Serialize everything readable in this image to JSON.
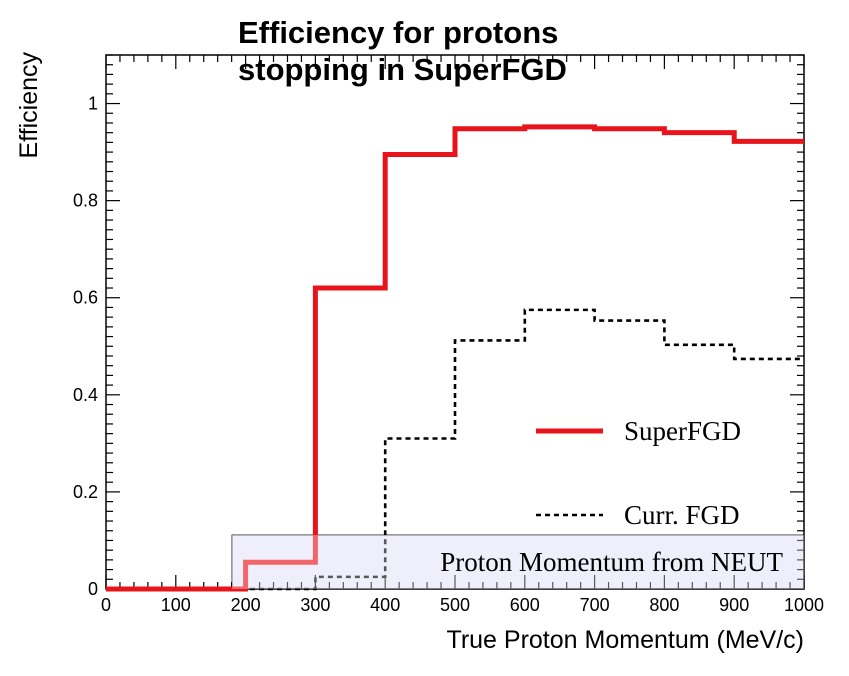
{
  "chart_data": {
    "type": "line",
    "title_lines": [
      "Efficiency for protons",
      "stopping in SuperFGD"
    ],
    "xlabel": "True Proton Momentum (MeV/c)",
    "ylabel": "Efficiency",
    "xlim": [
      0,
      1000
    ],
    "ylim": [
      0,
      1.1
    ],
    "x_ticks": [
      0,
      100,
      200,
      300,
      400,
      500,
      600,
      700,
      800,
      900,
      1000
    ],
    "y_ticks": [
      0,
      0.2,
      0.4,
      0.6,
      0.8,
      1
    ],
    "y_tick_labels": [
      "0",
      "0.2",
      "0.4",
      "0.6",
      "0.8",
      "1"
    ],
    "grid": false,
    "legend_position": "center-right",
    "bin_edges": [
      0,
      100,
      200,
      300,
      400,
      500,
      600,
      700,
      800,
      900,
      1000
    ],
    "series": [
      {
        "name": "SuperFGD",
        "style": "solid",
        "color": "#e8141b",
        "values": [
          0.0,
          0.0,
          0.055,
          0.62,
          0.895,
          0.948,
          0.952,
          0.948,
          0.94,
          0.922
        ]
      },
      {
        "name": "Curr. FGD",
        "style": "dashed",
        "color": "#000000",
        "values": [
          0.0,
          0.0,
          0.0,
          0.025,
          0.31,
          0.512,
          0.575,
          0.553,
          0.503,
          0.474
        ]
      }
    ],
    "annotation": {
      "text": "Proton Momentum from NEUT",
      "fill": "#e6e6fa"
    }
  }
}
